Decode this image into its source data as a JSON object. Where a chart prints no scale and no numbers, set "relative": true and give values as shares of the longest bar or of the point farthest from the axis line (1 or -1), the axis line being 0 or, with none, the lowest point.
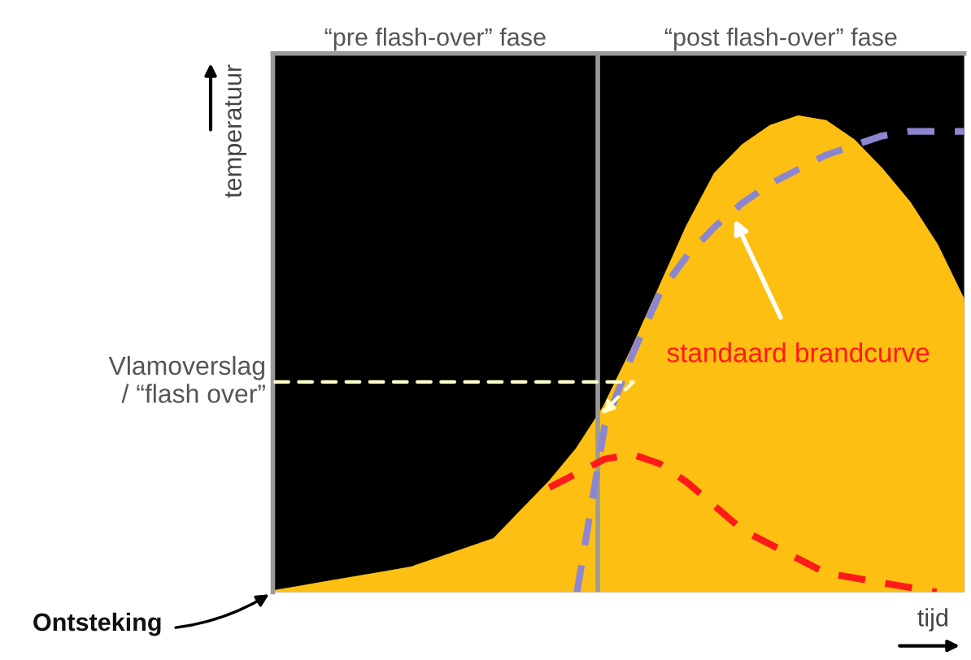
{
  "chart_data": {
    "type": "area",
    "relative": true,
    "tick_labels": false,
    "legend": false,
    "xlabel": "tijd",
    "ylabel": "temperatuur",
    "categories": [
      null,
      null,
      null,
      null,
      null,
      null,
      null,
      null,
      null,
      null,
      null,
      null,
      null,
      null,
      null,
      null,
      null,
      null,
      null,
      null,
      null,
      null,
      null,
      null,
      null,
      null
    ],
    "series": [
      {
        "color": "#fdbf12",
        "values": [
          0,
          0.01,
          0.02,
          0.03,
          0.04,
          0.05,
          0.07,
          0.09,
          0.11,
          0.17,
          0.23,
          0.3,
          0.39,
          0.51,
          0.64,
          0.77,
          0.88,
          0.94,
          0.98,
          1,
          0.99,
          0.95,
          0.89,
          0.82,
          0.73,
          0.61
        ]
      },
      {
        "type": "line",
        "line_style": "dashed",
        "color": "#8c86d0",
        "values": [
          null,
          null,
          null,
          null,
          null,
          null,
          null,
          null,
          null,
          null,
          null,
          0,
          0.35,
          0.5,
          0.63,
          0.71,
          0.77,
          0.82,
          0.86,
          0.89,
          0.92,
          0.94,
          0.96,
          0.97,
          0.97,
          0.97
        ]
      },
      {
        "type": "line",
        "line_style": "dashed",
        "color": "#ff1a1a",
        "values": [
          null,
          null,
          null,
          null,
          null,
          null,
          null,
          null,
          null,
          null,
          0.22,
          0.25,
          0.28,
          0.29,
          0.27,
          0.23,
          0.18,
          0.13,
          0.1,
          0.07,
          0.04,
          0.03,
          0.02,
          0.01,
          0,
          null
        ]
      }
    ],
    "annotations": [
      "“pre flash-over” fase",
      "“post flash-over” fase",
      "Vlamoverslag\n/ “flash over”",
      "Ontsteking",
      "standaard brandcurve"
    ]
  }
}
